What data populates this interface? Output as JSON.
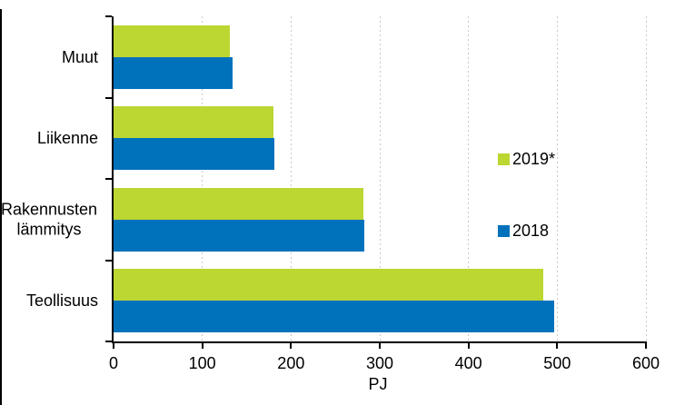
{
  "chart_data": {
    "type": "bar",
    "orientation": "horizontal",
    "categories": [
      "Muut",
      "Liikenne",
      "Rakennusten lämmitys",
      "Teollisuus"
    ],
    "series": [
      {
        "name": "2019*",
        "color": "#bcd632",
        "values": [
          131,
          180,
          282,
          484
        ]
      },
      {
        "name": "2018",
        "color": "#0072bc",
        "values": [
          134,
          181,
          283,
          497
        ]
      }
    ],
    "xlabel": "PJ",
    "xlim": [
      0,
      600
    ],
    "xticks": [
      0,
      100,
      200,
      300,
      400,
      500,
      600
    ],
    "grid": "vertical-dotted",
    "legend_position": "inside-right"
  },
  "colors": {
    "background": "#ffffff",
    "axis": "#000000",
    "gridline": "#c9c9c9",
    "text": "#000000"
  }
}
